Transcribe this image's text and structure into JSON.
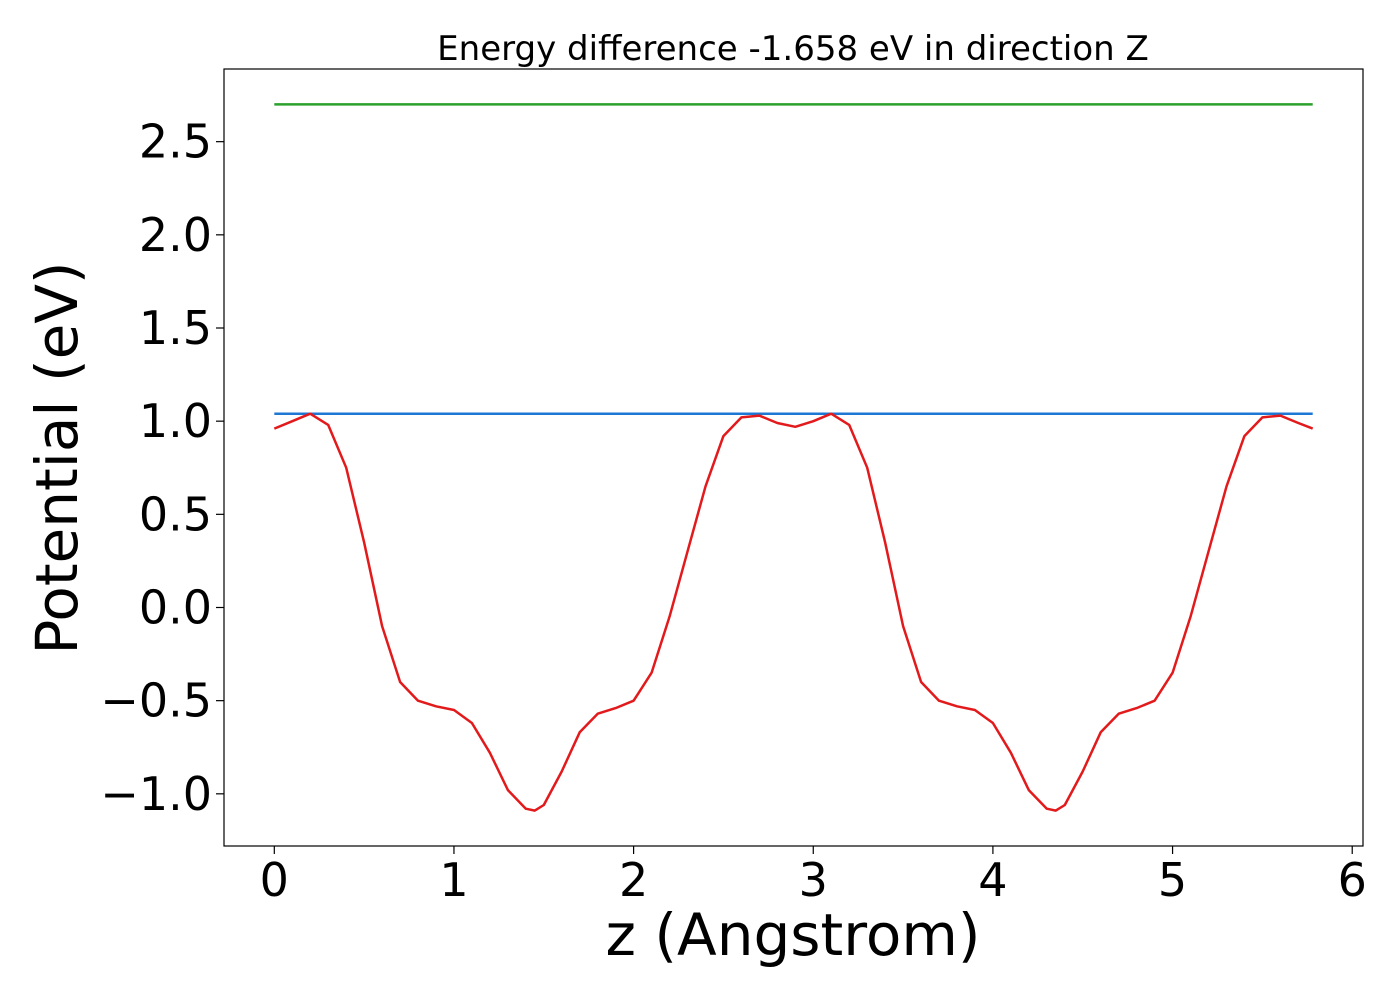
{
  "chart_data": {
    "type": "line",
    "title": "Energy difference -1.658 eV in direction Z",
    "xlabel": "z (Angstrom)",
    "ylabel": "Potential (eV)",
    "xlim": [
      -0.28,
      6.06
    ],
    "ylim": [
      -1.28,
      2.89
    ],
    "xticks": [
      0,
      1,
      2,
      3,
      4,
      5,
      6
    ],
    "xtick_labels": [
      "0",
      "1",
      "2",
      "3",
      "4",
      "5",
      "6"
    ],
    "yticks": [
      -1.0,
      -0.5,
      0.0,
      0.5,
      1.0,
      1.5,
      2.0,
      2.5
    ],
    "ytick_labels": [
      "−1.0",
      "−0.5",
      "0.0",
      "0.5",
      "1.0",
      "1.5",
      "2.0",
      "2.5"
    ],
    "grid": false,
    "series": [
      {
        "color": "#2ca02c",
        "x": [
          0,
          5.78
        ],
        "y": [
          2.7,
          2.7
        ]
      },
      {
        "color": "#1f77d4",
        "x": [
          0,
          5.78
        ],
        "y": [
          1.04,
          1.04
        ]
      },
      {
        "color": "#e31a1c",
        "x": [
          0.0,
          0.1,
          0.2,
          0.3,
          0.4,
          0.5,
          0.6,
          0.7,
          0.8,
          0.9,
          1.0,
          1.1,
          1.2,
          1.3,
          1.4,
          1.45,
          1.5,
          1.6,
          1.7,
          1.8,
          1.9,
          2.0,
          2.1,
          2.2,
          2.3,
          2.4,
          2.5,
          2.6,
          2.7,
          2.8,
          2.9,
          3.0,
          3.1,
          3.2,
          3.3,
          3.4,
          3.5,
          3.6,
          3.7,
          3.8,
          3.9,
          4.0,
          4.1,
          4.2,
          4.3,
          4.35,
          4.4,
          4.5,
          4.6,
          4.7,
          4.8,
          4.9,
          5.0,
          5.1,
          5.2,
          5.3,
          5.4,
          5.5,
          5.6,
          5.7,
          5.78
        ],
        "y": [
          0.96,
          1.0,
          1.04,
          0.98,
          0.75,
          0.35,
          -0.1,
          -0.4,
          -0.5,
          -0.53,
          -0.55,
          -0.62,
          -0.78,
          -0.98,
          -1.08,
          -1.09,
          -1.06,
          -0.88,
          -0.67,
          -0.57,
          -0.54,
          -0.5,
          -0.35,
          -0.05,
          0.3,
          0.65,
          0.92,
          1.02,
          1.03,
          0.99,
          0.97,
          1.0,
          1.04,
          0.98,
          0.75,
          0.35,
          -0.1,
          -0.4,
          -0.5,
          -0.53,
          -0.55,
          -0.62,
          -0.78,
          -0.98,
          -1.08,
          -1.09,
          -1.06,
          -0.88,
          -0.67,
          -0.57,
          -0.54,
          -0.5,
          -0.35,
          -0.05,
          0.3,
          0.65,
          0.92,
          1.02,
          1.03,
          0.99,
          0.96
        ]
      }
    ]
  }
}
